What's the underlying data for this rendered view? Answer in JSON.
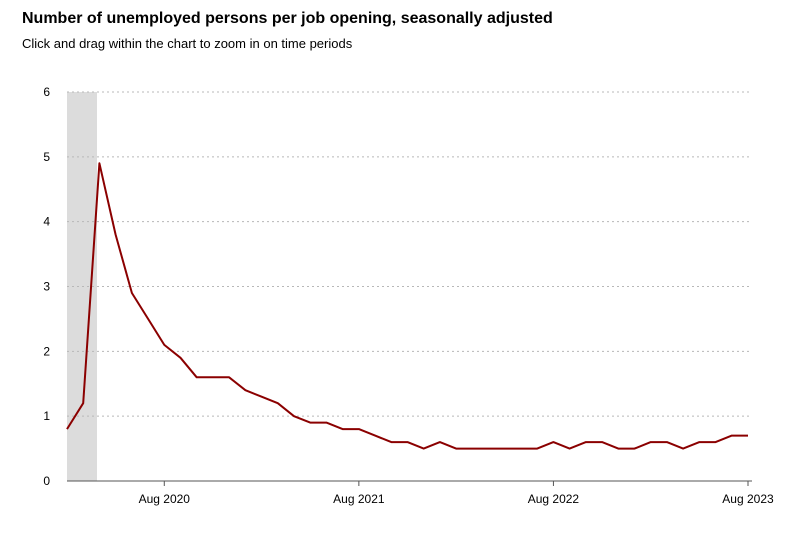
{
  "header": {
    "title": "Number of unemployed persons per job opening, seasonally adjusted",
    "subtitle": "Click and drag within the chart to zoom in on time periods"
  },
  "chart_data": {
    "type": "line",
    "title": "Number of unemployed persons per job opening, seasonally adjusted",
    "subtitle": "Click and drag within the chart to zoom in on time periods",
    "xlabel": "",
    "ylabel": "",
    "ylim": [
      0,
      6
    ],
    "yticks": [
      "0",
      "1",
      "2",
      "3",
      "4",
      "5",
      "6"
    ],
    "xticks": [
      {
        "label": "Aug 2020",
        "index": 6
      },
      {
        "label": "Aug 2021",
        "index": 18
      },
      {
        "label": "Aug 2022",
        "index": 30
      },
      {
        "label": "Aug 2023",
        "index": 42
      }
    ],
    "grid": "horizontal dotted",
    "recession_shading": {
      "start_index": 0,
      "end_index": 2
    },
    "x": [
      "Feb 2020",
      "Mar 2020",
      "Apr 2020",
      "May 2020",
      "Jun 2020",
      "Jul 2020",
      "Aug 2020",
      "Sep 2020",
      "Oct 2020",
      "Nov 2020",
      "Dec 2020",
      "Jan 2021",
      "Feb 2021",
      "Mar 2021",
      "Apr 2021",
      "May 2021",
      "Jun 2021",
      "Jul 2021",
      "Aug 2021",
      "Sep 2021",
      "Oct 2021",
      "Nov 2021",
      "Dec 2021",
      "Jan 2022",
      "Feb 2022",
      "Mar 2022",
      "Apr 2022",
      "May 2022",
      "Jun 2022",
      "Jul 2022",
      "Aug 2022",
      "Sep 2022",
      "Oct 2022",
      "Nov 2022",
      "Dec 2022",
      "Jan 2023",
      "Feb 2023",
      "Mar 2023",
      "Apr 2023",
      "May 2023",
      "Jun 2023",
      "Jul 2023",
      "Aug 2023"
    ],
    "series": [
      {
        "name": "Unemployed persons per job opening",
        "color": "#8b0000",
        "values": [
          0.8,
          1.2,
          4.9,
          3.8,
          2.9,
          2.5,
          2.1,
          1.9,
          1.6,
          1.6,
          1.6,
          1.4,
          1.3,
          1.2,
          1.0,
          0.9,
          0.9,
          0.8,
          0.8,
          0.7,
          0.6,
          0.6,
          0.5,
          0.6,
          0.5,
          0.5,
          0.5,
          0.5,
          0.5,
          0.5,
          0.6,
          0.5,
          0.6,
          0.6,
          0.5,
          0.5,
          0.6,
          0.6,
          0.5,
          0.6,
          0.6,
          0.7,
          0.7
        ]
      }
    ]
  },
  "colors": {
    "line": "#8b0000",
    "recession": "#dcdcdc",
    "grid": "#b8b8b8",
    "axis": "#555555"
  }
}
